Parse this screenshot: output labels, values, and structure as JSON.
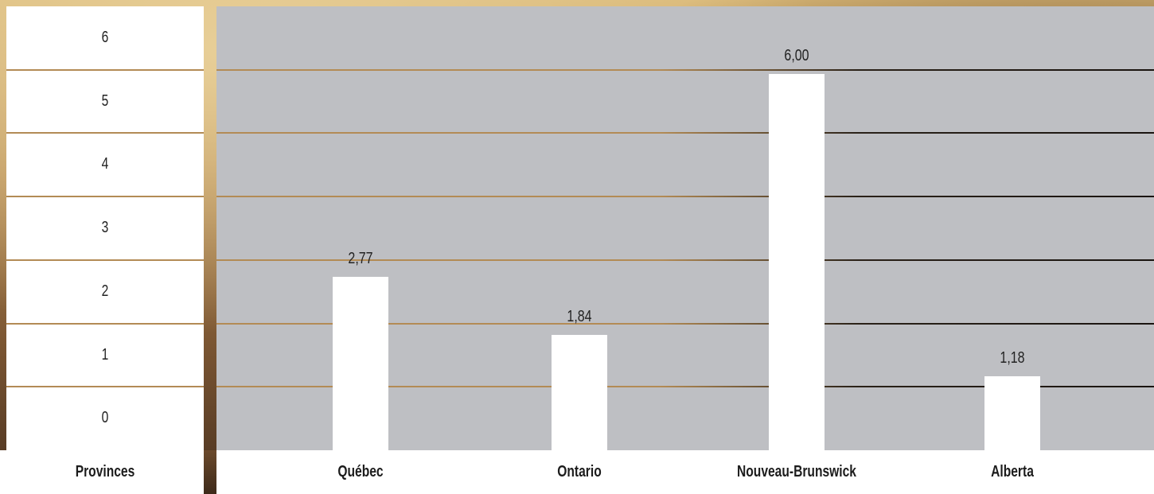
{
  "chart_data": {
    "type": "bar",
    "xlabel": "Provinces",
    "ylabel": "",
    "categories": [
      "Québec",
      "Ontario",
      "Nouveau-Brunswick",
      "Alberta"
    ],
    "values": [
      2.77,
      1.84,
      6.0,
      1.18
    ],
    "value_labels": [
      "2,77",
      "1,84",
      "6,00",
      "1,18"
    ],
    "y_ticks": [
      "0",
      "1",
      "2",
      "3",
      "4",
      "5",
      "6"
    ],
    "ylim": [
      0,
      6.5
    ],
    "grid": true,
    "legend": "none",
    "colors": {
      "bar": "#ffffff",
      "plot_bg": "#bebfc3",
      "grid": "#b38b55"
    }
  }
}
